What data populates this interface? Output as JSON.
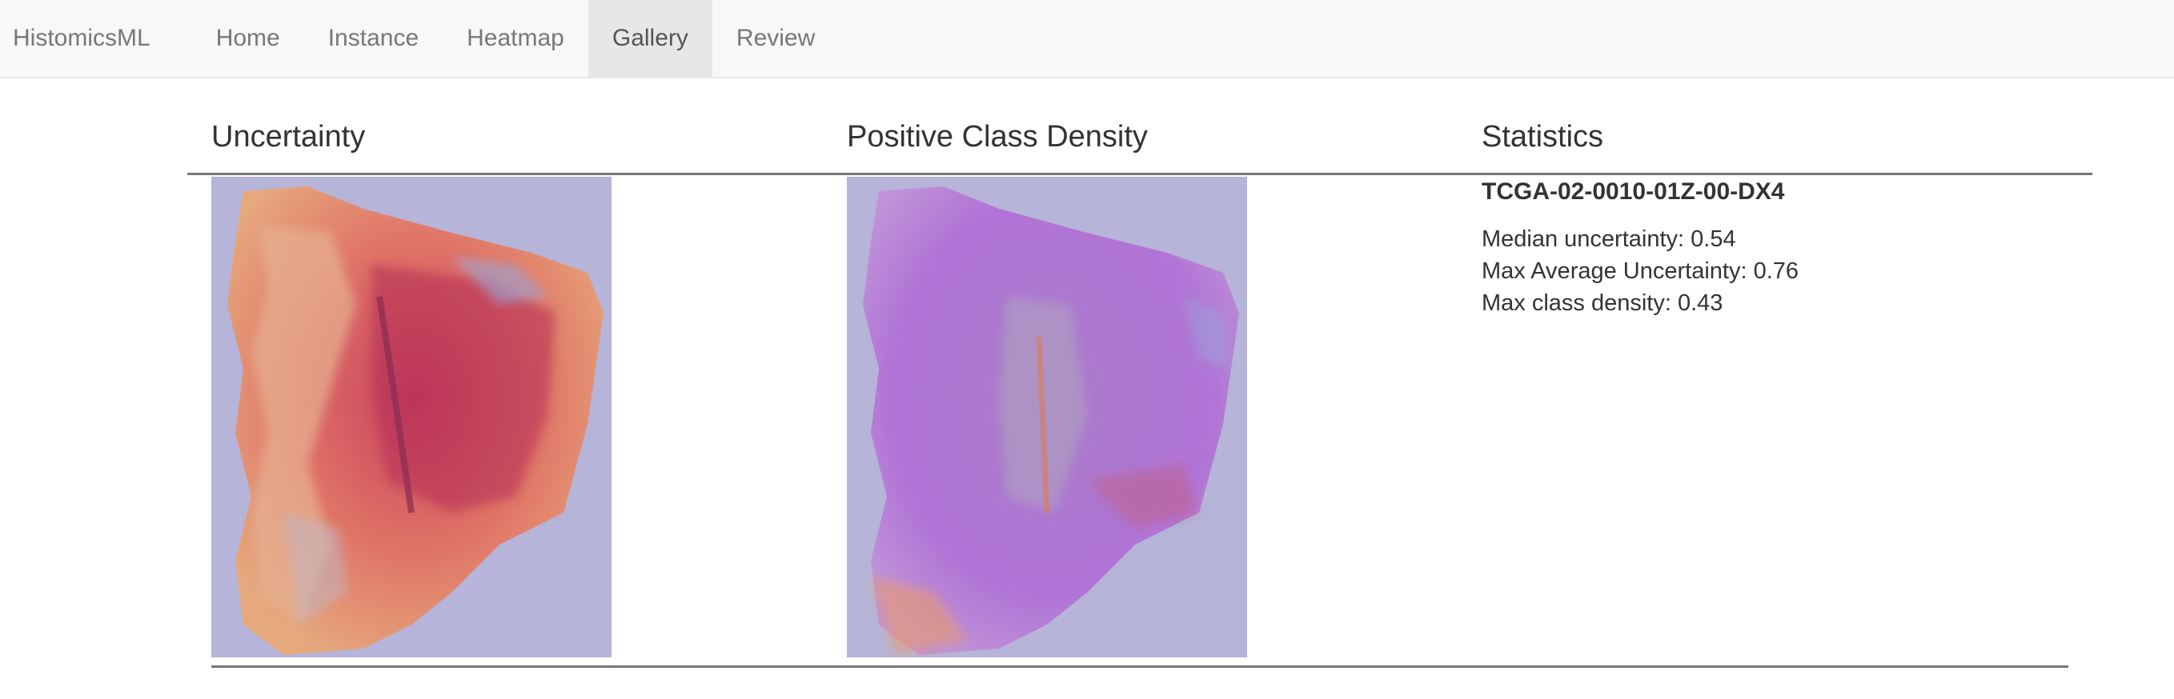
{
  "navbar": {
    "brand": "HistomicsML",
    "items": [
      {
        "label": "Home",
        "active": false
      },
      {
        "label": "Instance",
        "active": false
      },
      {
        "label": "Heatmap",
        "active": false
      },
      {
        "label": "Gallery",
        "active": true
      },
      {
        "label": "Review",
        "active": false
      }
    ]
  },
  "gallery": {
    "columns": {
      "uncertainty": "Uncertainty",
      "density": "Positive Class Density",
      "statistics": "Statistics"
    },
    "slide": {
      "id": "TCGA-02-0010-01Z-00-DX4",
      "median_uncertainty": "Median uncertainty: 0.54",
      "max_average_uncertainty": "Max Average Uncertainty: 0.76",
      "max_class_density": "Max class density: 0.43"
    }
  },
  "colors": {
    "background_tint": "#b6b4d8",
    "uncertainty_low": "#e8a070",
    "uncertainty_high": "#c8405a",
    "density_base": "#b070d0",
    "density_hot": "#e87050"
  }
}
